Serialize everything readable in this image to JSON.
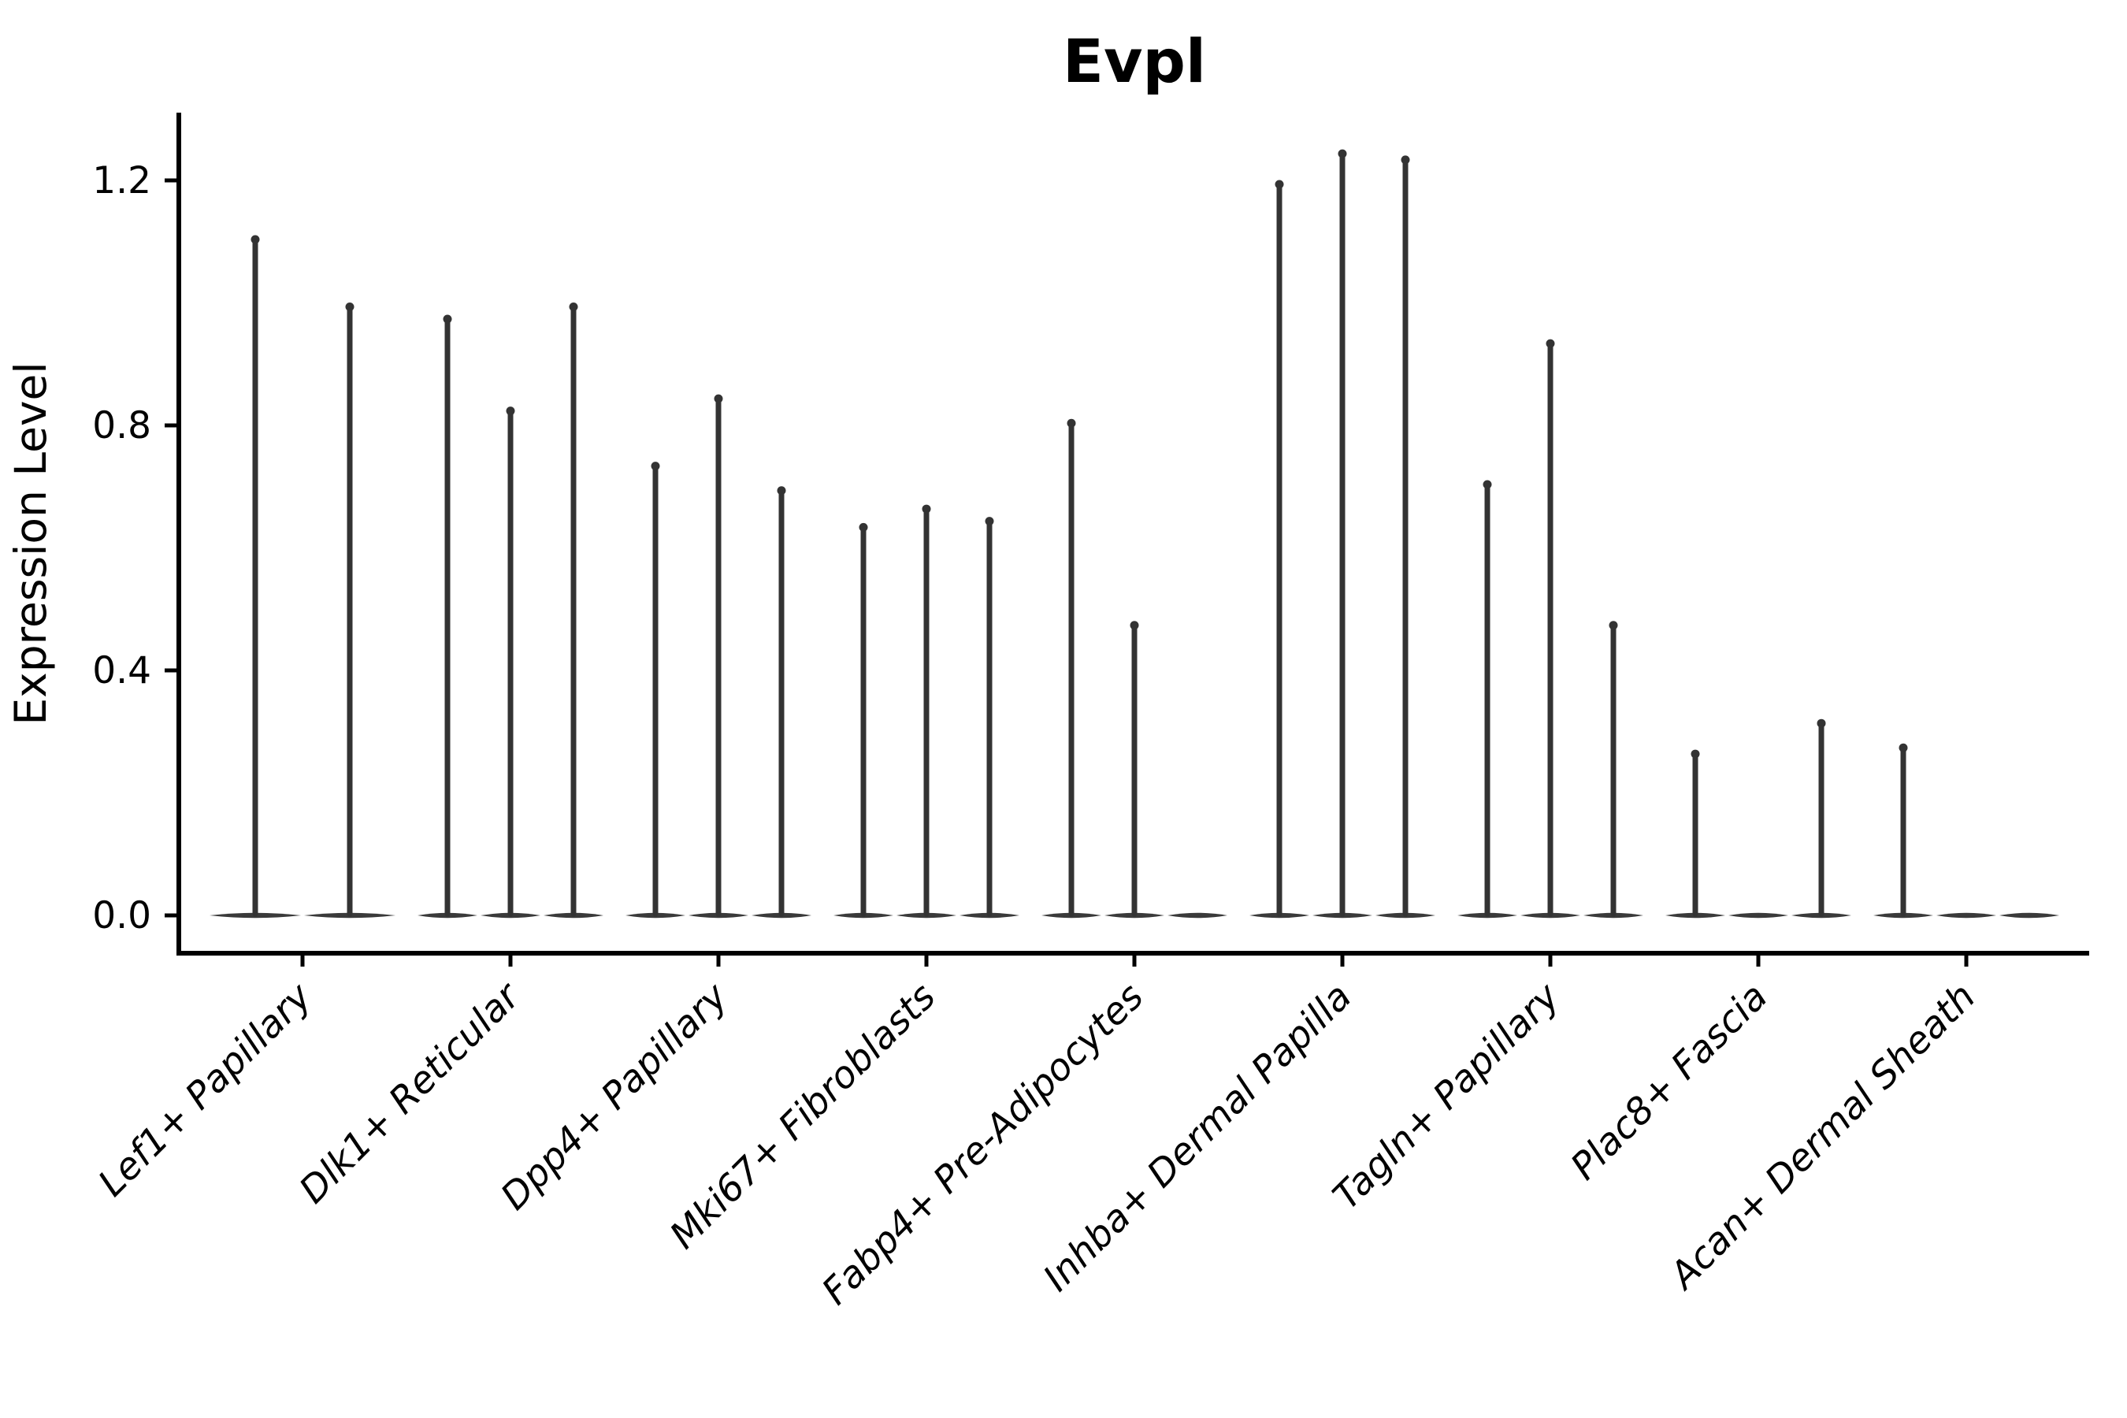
{
  "title": "Evpl",
  "y_axis": {
    "label": "Expression Level",
    "tick_labels": [
      "0.0",
      "0.4",
      "0.8",
      "1.2"
    ]
  },
  "chart_data": {
    "type": "violin",
    "title": "Evpl",
    "xlabel": "",
    "ylabel": "Expression Level",
    "ylim": [
      -0.06,
      1.33
    ],
    "yticks": [
      0.0,
      0.4,
      0.8,
      1.2
    ],
    "grid": false,
    "legend": "none",
    "violin_color": "#333333",
    "categories": [
      "Lef1+ Papillary",
      "Dlk1+ Reticular",
      "Dpp4+ Papillary",
      "Mki67+ Fibroblasts",
      "Fabp4+ Pre-Adipocytes",
      "Inhba+ Dermal Papilla",
      "Tagln+ Papillary",
      "Plac8+ Fascia",
      "Acan+ Dermal Sheath"
    ],
    "groups": [
      {
        "category": "Lef1+ Papillary",
        "violin_peaks": [
          1.11,
          1.0
        ]
      },
      {
        "category": "Dlk1+ Reticular",
        "violin_peaks": [
          0.98,
          0.83,
          1.0
        ]
      },
      {
        "category": "Dpp4+ Papillary",
        "violin_peaks": [
          0.74,
          0.85,
          0.7
        ]
      },
      {
        "category": "Mki67+ Fibroblasts",
        "violin_peaks": [
          0.64,
          0.67,
          0.65
        ]
      },
      {
        "category": "Fabp4+ Pre-Adipocytes",
        "violin_peaks": [
          0.81,
          0.48,
          0.0
        ]
      },
      {
        "category": "Inhba+ Dermal Papilla",
        "violin_peaks": [
          1.2,
          1.25,
          1.24
        ]
      },
      {
        "category": "Tagln+ Papillary",
        "violin_peaks": [
          0.71,
          0.94,
          0.48
        ]
      },
      {
        "category": "Plac8+ Fascia",
        "violin_peaks": [
          0.27,
          0.0,
          0.32
        ]
      },
      {
        "category": "Acan+ Dermal Sheath",
        "violin_peaks": [
          0.28,
          0.0,
          0.0
        ]
      }
    ],
    "notes": "Thin spike violins; peak value = top of each spike. 0 = flat violin lying on the baseline (zero expression)."
  }
}
